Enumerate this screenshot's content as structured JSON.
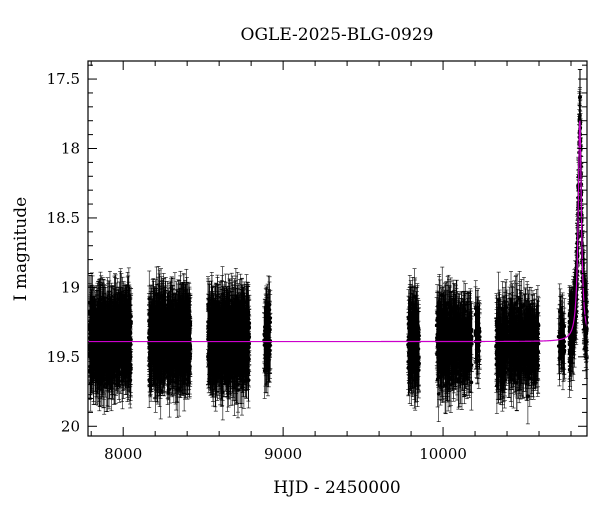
{
  "chart_data": {
    "type": "scatter",
    "title": "OGLE-2025-BLG-0929",
    "xlabel": "HJD - 2450000",
    "ylabel": "I magnitude",
    "xlim": [
      7780,
      10900
    ],
    "ylim": [
      20.07,
      17.37
    ],
    "y_inverted": true,
    "x_ticks": [
      8000,
      9000,
      10000
    ],
    "x_tick_labels": [
      "8000",
      "9000",
      "10000"
    ],
    "y_ticks": [
      17.5,
      18,
      18.5,
      19,
      19.5,
      20
    ],
    "y_tick_labels": [
      "17.5",
      "18",
      "18.5",
      "19",
      "19.5",
      "20"
    ],
    "grid": false,
    "baseline_magnitude": 19.39,
    "model": {
      "color": "#cc00cc",
      "t0": 10855,
      "peak_magnitude": 17.8,
      "tE_days": 12
    },
    "seasons": [
      {
        "start": 7790,
        "end": 8050,
        "median_mag": 19.38,
        "scatter": 0.25,
        "n": 900
      },
      {
        "start": 8160,
        "end": 8420,
        "median_mag": 19.38,
        "scatter": 0.25,
        "n": 900
      },
      {
        "start": 8530,
        "end": 8790,
        "median_mag": 19.38,
        "scatter": 0.25,
        "n": 900
      },
      {
        "start": 8880,
        "end": 8920,
        "median_mag": 19.38,
        "scatter": 0.22,
        "n": 80
      },
      {
        "start": 9780,
        "end": 9850,
        "median_mag": 19.4,
        "scatter": 0.25,
        "n": 200
      },
      {
        "start": 9960,
        "end": 10180,
        "median_mag": 19.4,
        "scatter": 0.25,
        "n": 500
      },
      {
        "start": 10200,
        "end": 10230,
        "median_mag": 19.35,
        "scatter": 0.2,
        "n": 40
      },
      {
        "start": 10330,
        "end": 10600,
        "median_mag": 19.4,
        "scatter": 0.25,
        "n": 500
      },
      {
        "start": 10720,
        "end": 10760,
        "median_mag": 19.35,
        "scatter": 0.2,
        "n": 40
      },
      {
        "start": 10790,
        "end": 10900,
        "median_mag": 19.4,
        "scatter": 0.22,
        "n": 300
      }
    ],
    "error_bar_half_width_mag": 0.2,
    "marker_color": "#000000"
  }
}
